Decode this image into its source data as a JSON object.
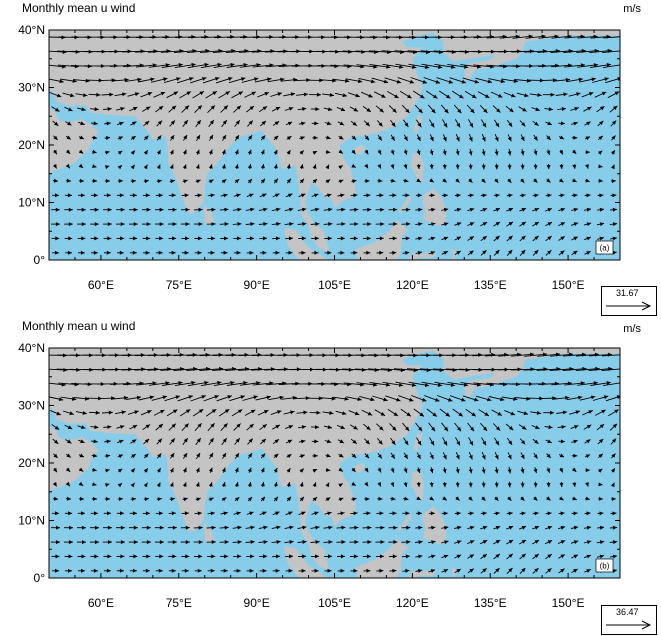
{
  "colors": {
    "ocean": "#87cdea",
    "land": "#c4c4c4",
    "arrow": "#000000"
  },
  "panels": [
    {
      "title": "Monthly mean u wind",
      "units": "m/s",
      "label": "(a)",
      "reference_vector": "31.67",
      "lat_ticks": [
        "40°N",
        "30°N",
        "20°N",
        "10°N",
        "0°"
      ],
      "lon_ticks": [
        "60°E",
        "75°E",
        "90°E",
        "105°E",
        "120°E",
        "135°E",
        "150°E"
      ]
    },
    {
      "title": "Monthly mean u wind",
      "units": "m/s",
      "label": "(b)",
      "reference_vector": "36.47",
      "lat_ticks": [
        "40°N",
        "30°N",
        "20°N",
        "10°N",
        "0°"
      ],
      "lon_ticks": [
        "60°E",
        "75°E",
        "90°E",
        "105°E",
        "120°E",
        "135°E",
        "150°E"
      ]
    }
  ]
}
